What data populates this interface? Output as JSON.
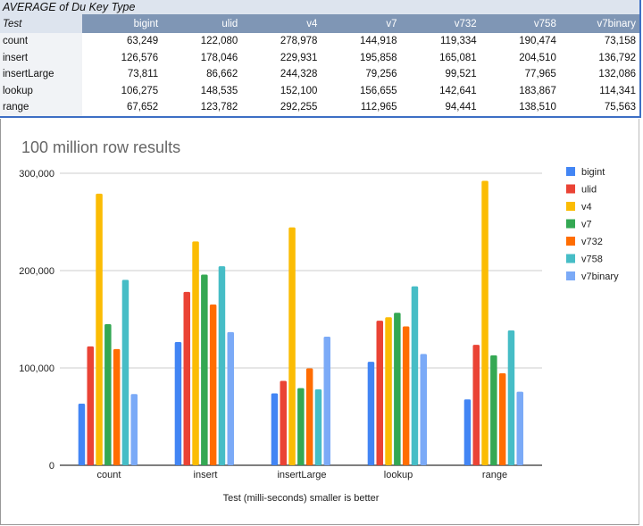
{
  "pivot": {
    "title": "AVERAGE of Du Key Type",
    "row_header": "Test",
    "columns": [
      "bigint",
      "ulid",
      "v4",
      "v7",
      "v732",
      "v758",
      "v7binary"
    ],
    "rows": [
      {
        "label": "count",
        "values": [
          "63,249",
          "122,080",
          "278,978",
          "144,918",
          "119,334",
          "190,474",
          "73,158"
        ]
      },
      {
        "label": "insert",
        "values": [
          "126,576",
          "178,046",
          "229,931",
          "195,858",
          "165,081",
          "204,510",
          "136,792"
        ]
      },
      {
        "label": "insertLarge",
        "values": [
          "73,811",
          "86,662",
          "244,328",
          "79,256",
          "99,521",
          "77,965",
          "132,086"
        ]
      },
      {
        "label": "lookup",
        "values": [
          "106,275",
          "148,535",
          "152,100",
          "156,655",
          "142,641",
          "183,867",
          "114,341"
        ]
      },
      {
        "label": "range",
        "values": [
          "67,652",
          "123,782",
          "292,255",
          "112,965",
          "94,441",
          "138,510",
          "75,563"
        ]
      }
    ]
  },
  "chart_data": {
    "type": "bar",
    "title": "100 million row results",
    "xlabel": "Test (milli-seconds) smaller is better",
    "ylabel": "",
    "ylim": [
      0,
      300000
    ],
    "yticks": [
      0,
      100000,
      200000,
      300000
    ],
    "ytick_labels": [
      "0",
      "100,000",
      "200,000",
      "300,000"
    ],
    "grid": true,
    "legend_position": "right",
    "categories": [
      "count",
      "insert",
      "insertLarge",
      "lookup",
      "range"
    ],
    "series": [
      {
        "name": "bigint",
        "color": "#4285f4",
        "values": [
          63249,
          126576,
          73811,
          106275,
          67652
        ]
      },
      {
        "name": "ulid",
        "color": "#ea4335",
        "values": [
          122080,
          178046,
          86662,
          148535,
          123782
        ]
      },
      {
        "name": "v4",
        "color": "#fbbc04",
        "values": [
          278978,
          229931,
          244328,
          152100,
          292255
        ]
      },
      {
        "name": "v7",
        "color": "#34a853",
        "values": [
          144918,
          195858,
          79256,
          156655,
          112965
        ]
      },
      {
        "name": "v732",
        "color": "#ff6d01",
        "values": [
          119334,
          165081,
          99521,
          142641,
          94441
        ]
      },
      {
        "name": "v758",
        "color": "#46bdc6",
        "values": [
          190474,
          204510,
          77965,
          183867,
          138510
        ]
      },
      {
        "name": "v7binary",
        "color": "#7baaf7",
        "values": [
          73158,
          136792,
          132086,
          114341,
          75563
        ]
      }
    ]
  }
}
